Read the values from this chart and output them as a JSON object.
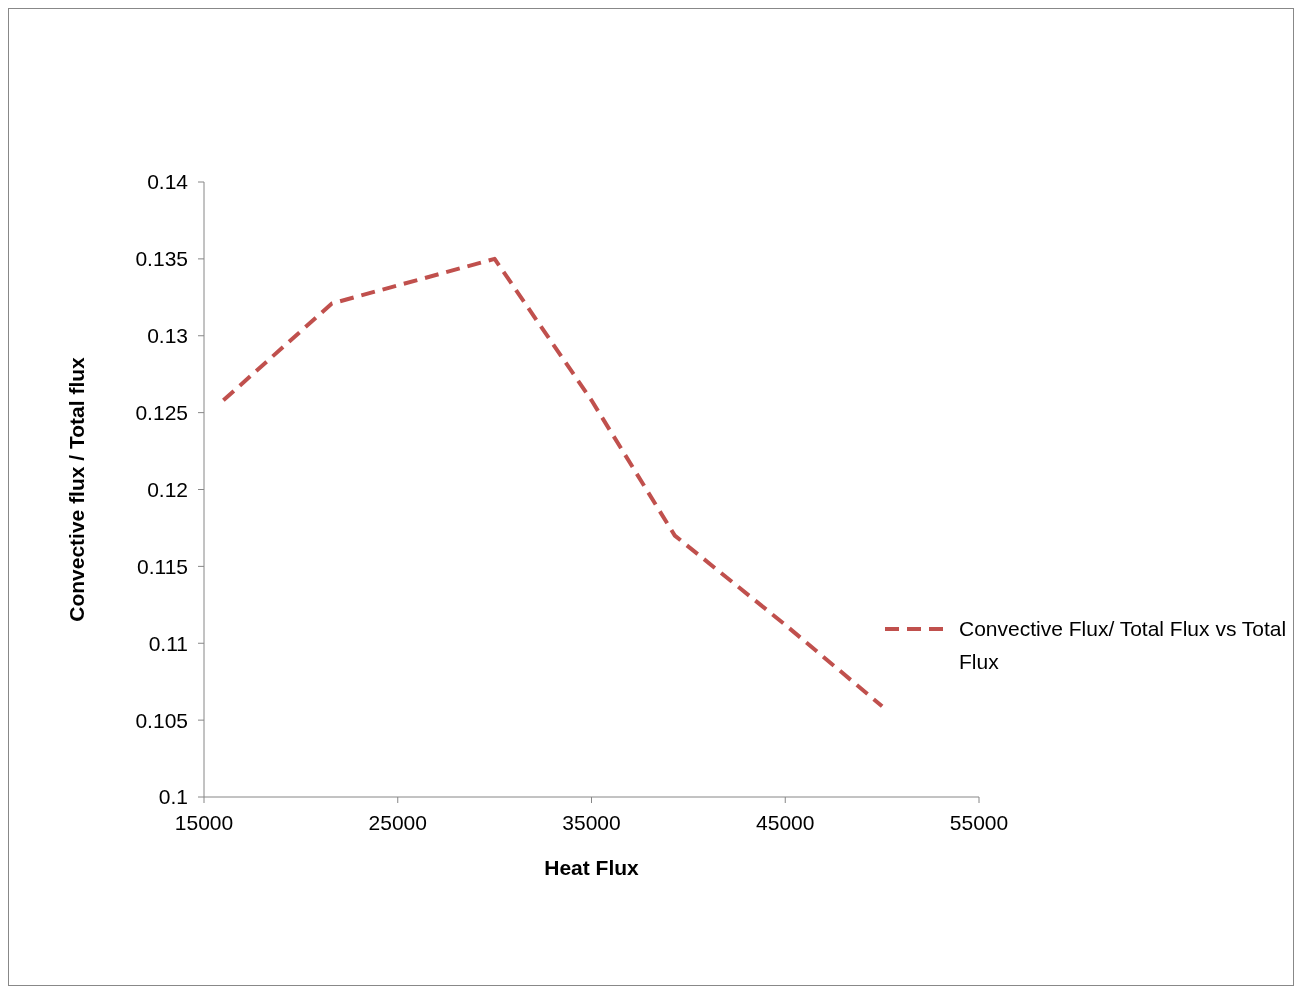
{
  "chart_data": {
    "type": "line",
    "xlabel": "Heat Flux",
    "ylabel": "Convective flux / Total flux",
    "x": [
      16000,
      21600,
      30000,
      35000,
      39300,
      45000,
      50000
    ],
    "series": [
      {
        "name": "Convective Flux/ Total Flux vs Total Flux",
        "color": "#c0504d",
        "values": [
          0.1258,
          0.1321,
          0.135,
          0.1258,
          0.117,
          0.1112,
          0.1059
        ]
      }
    ],
    "xlim": [
      15000,
      55000
    ],
    "xticks": [
      15000,
      25000,
      35000,
      45000,
      55000
    ],
    "ylim": [
      0.1,
      0.14
    ],
    "yticks": [
      0.1,
      0.105,
      0.11,
      0.115,
      0.12,
      0.125,
      0.13,
      0.135,
      0.14
    ],
    "grid": false,
    "legend": "right",
    "marker": "none",
    "line_style": "dashed"
  }
}
